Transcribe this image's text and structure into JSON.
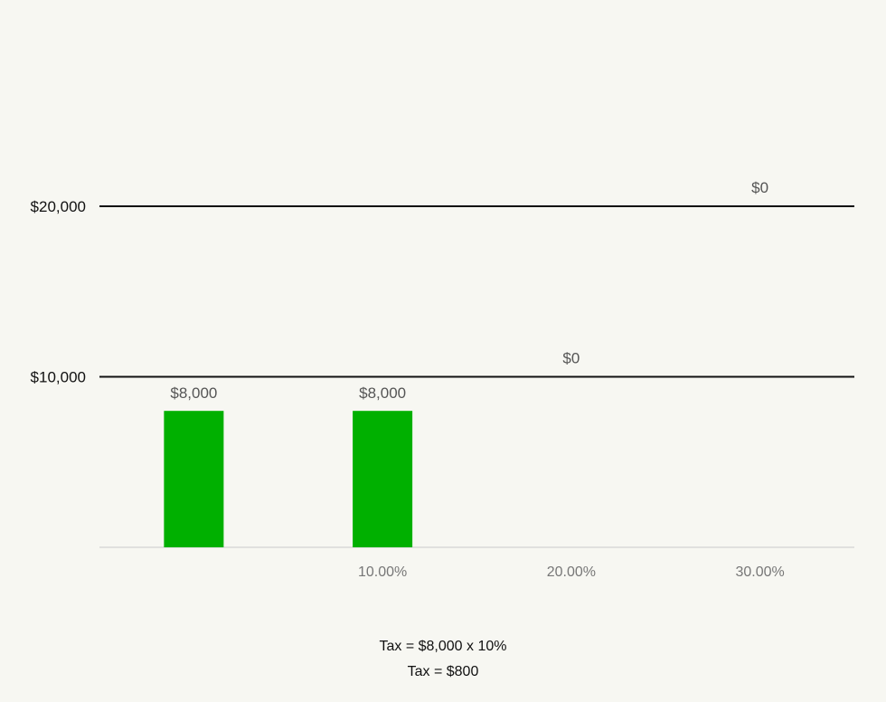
{
  "chart_data": {
    "type": "bar",
    "categories": [
      "",
      "10.00%",
      "20.00%",
      "30.00%"
    ],
    "values": [
      8000,
      8000,
      0,
      0
    ],
    "data_labels": [
      "$8,000",
      "$8,000",
      "",
      ""
    ],
    "bracket_lines": [
      {
        "value": 10000,
        "label": "$10,000",
        "annotation": "$0"
      },
      {
        "value": 20000,
        "label": "$20,000",
        "annotation": "$0"
      }
    ],
    "ylim": [
      0,
      20000
    ],
    "bar_color": "#00b000",
    "line_color": "#111111"
  },
  "caption": {
    "line1": "Tax = $8,000 x 10%",
    "line2": "Tax = $800"
  }
}
